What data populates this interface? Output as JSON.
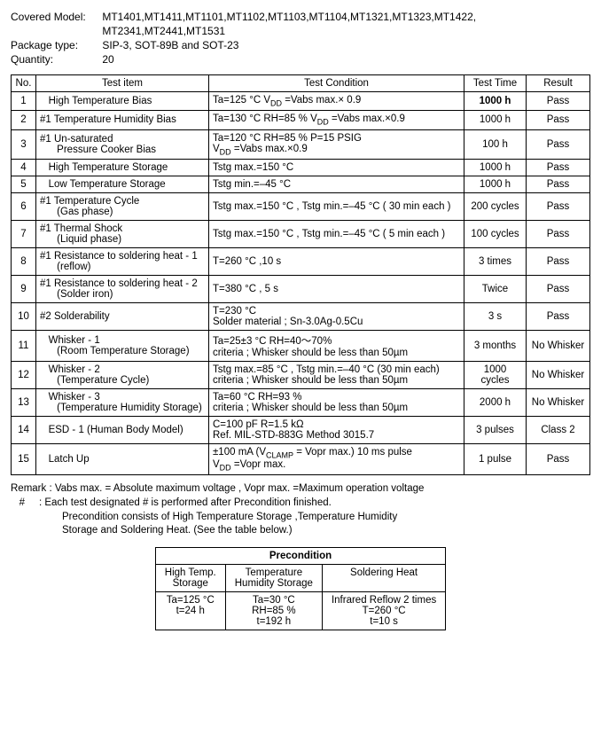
{
  "header": {
    "model_label": "Covered  Model:",
    "model_line1": "MT1401,MT1411,MT1101,MT1102,MT1103,MT1104,MT1321,MT1323,MT1422,",
    "model_line2": "MT2341,MT2441,MT1531",
    "package_label": "Package type:",
    "package_value": "SIP-3, SOT-89B and SOT-23",
    "qty_label": "Quantity:",
    "qty_value": "20"
  },
  "columns": {
    "no": "No.",
    "item": "Test item",
    "cond": "Test Condition",
    "time": "Test Time",
    "result": "Result"
  },
  "rows": [
    {
      "no": "1",
      "item": "   High Temperature Bias",
      "cond": "Ta=125 °C  V<sub>DD</sub> =Vabs max.× 0.9",
      "time": "1000 h",
      "time_bold": true,
      "result": "Pass"
    },
    {
      "no": "2",
      "item": "#1 Temperature Humidity Bias",
      "cond": "Ta=130 °C  RH=85 %  V<sub>DD</sub> =Vabs max.×0.9",
      "time": "1000 h",
      "result": "Pass"
    },
    {
      "no": "3",
      "item": "#1 Un-saturated<br>      Pressure Cooker Bias",
      "cond": "Ta=120 °C  RH=85 %  P=15 PSIG<br>V<sub>DD</sub> =Vabs max.×0.9",
      "time": "100 h",
      "result": "Pass"
    },
    {
      "no": "4",
      "item": "   High Temperature Storage",
      "cond": "Tstg max.=150 °C",
      "time": "1000 h",
      "result": "Pass"
    },
    {
      "no": "5",
      "item": "   Low Temperature Storage",
      "cond": "Tstg min.=–45 °C",
      "time": "1000 h",
      "result": "Pass"
    },
    {
      "no": "6",
      "item": "#1 Temperature Cycle<br>      (Gas phase)",
      "cond": "Tstg max.=150 °C , Tstg min.=–45 °C ( 30 min each )",
      "time": "200 cycles",
      "result": "Pass"
    },
    {
      "no": "7",
      "item": "#1 Thermal Shock<br>      (Liquid phase)",
      "cond": "Tstg max.=150 °C , Tstg min.=–45 °C ( 5 min each )",
      "time": "100 cycles",
      "result": "Pass"
    },
    {
      "no": "8",
      "item": "#1 Resistance to soldering heat  - 1<br>      (reflow)",
      "cond": "T=260 °C ,10 s",
      "time": "3 times",
      "result": "Pass"
    },
    {
      "no": "9",
      "item": "#1 Resistance to soldering heat  - 2<br>      (Solder iron)",
      "cond": "T=380 °C , 5 s",
      "time": "Twice",
      "result": "Pass"
    },
    {
      "no": "10",
      "item": "#2 Solderability",
      "cond": "T=230 °C<br>Solder material ; Sn-3.0Ag-0.5Cu",
      "time": "3 s",
      "result": "Pass"
    },
    {
      "no": "11",
      "item": "   Whisker - 1<br>      (Room Temperature Storage)",
      "cond": "Ta=25±3 °C   RH=40～70%<br>criteria ; Whisker should be less than 50µm",
      "time": "3 months",
      "result": "No Whisker"
    },
    {
      "no": "12",
      "item": "   Whisker - 2<br>      (Temperature Cycle)",
      "cond": "Tstg max.=85 °C , Tstg min.=–40 °C (30 min each)<br>criteria ; Whisker should be less than 50µm",
      "time": "1000<br>cycles",
      "result": "No Whisker"
    },
    {
      "no": "13",
      "item": "   Whisker - 3<br>      (Temperature Humidity Storage)",
      "cond": "Ta=60 °C  RH=93 %<br>criteria ; Whisker should be less than 50µm",
      "time": "2000 h",
      "result": "No Whisker"
    },
    {
      "no": "14",
      "item": "   ESD - 1 (Human Body Model)",
      "cond": "C=100 pF  R=1.5 kΩ<br>Ref. MIL-STD-883G Method 3015.7",
      "time": "3 pulses",
      "result": "Class 2"
    },
    {
      "no": "15",
      "item": "   Latch Up",
      "cond": "±100 mA (V<sub>CLAMP</sub> = Vopr max.) 10 ms pulse<br>V<sub>DD</sub> =Vopr max.",
      "time": "1  pulse",
      "result": "Pass"
    }
  ],
  "remark": {
    "l1": "Remark : Vabs max. = Absolute maximum voltage , Vopr max. =Maximum operation voltage",
    "l2": "   #     : Each test designated # is performed after Precondition finished.",
    "l3": "Precondition consists of High Temperature Storage ,Temperature Humidity",
    "l4": "Storage and Soldering Heat. (See the table below.)"
  },
  "pre": {
    "title": "Precondition",
    "h1": "High Temp.<br>Storage",
    "h2": "Temperature<br>Humidity Storage",
    "h3": "Soldering Heat",
    "c1": "Ta=125 °C<br>t=24 h",
    "c2": "Ta=30 °C<br>RH=85 %<br>t=192 h",
    "c3": "Infrared Reflow 2 times<br>T=260 °C<br>t=10 s"
  }
}
